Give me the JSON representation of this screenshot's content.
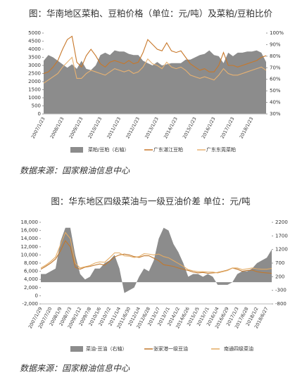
{
  "chart_data": [
    {
      "type": "line",
      "title": "图：华南地区菜粕、豆粕价格（单位：元/吨）及菜粕/豆粕比价",
      "source": "数据来源：国家粮油信息中心",
      "categories": [
        "2007/1/23",
        null,
        null,
        null,
        "2008/1/23",
        null,
        null,
        null,
        "2009/1/23",
        null,
        null,
        null,
        "2010/1/23",
        null,
        null,
        null,
        "2011/1/23",
        null,
        null,
        null,
        "2012/1/23",
        null,
        null,
        null,
        "2013/1/23",
        null,
        null,
        null,
        "2014/1/23",
        null,
        null,
        null,
        "2015/1/23",
        null,
        null,
        null,
        "2016/1/23",
        null,
        null,
        null,
        "2017/1/23",
        null,
        null,
        null,
        "2018/1/23",
        null,
        null,
        null
      ],
      "ylim": [
        0,
        5000
      ],
      "yticks": [
        0,
        500,
        1000,
        1500,
        2000,
        2500,
        3000,
        3500,
        4000,
        4500,
        5000
      ],
      "y2lim": [
        30,
        100
      ],
      "y2ticks": [
        {
          "value": 30,
          "label": "30%"
        },
        {
          "value": 40,
          "label": "40%"
        },
        {
          "value": 50,
          "label": "50%"
        },
        {
          "value": 60,
          "label": "60%"
        },
        {
          "value": 70,
          "label": "70%"
        },
        {
          "value": 80,
          "label": "80%"
        },
        {
          "value": 90,
          "label": "90%"
        },
        {
          "value": 100,
          "label": "100%"
        }
      ],
      "series": [
        {
          "name": "菜粕/豆粕（右轴）",
          "type": "area",
          "axis": "y2",
          "color": "#8c8c8c",
          "values": [
            76,
            81,
            79,
            76,
            73,
            70,
            73,
            69,
            76,
            69,
            68,
            72,
            81,
            83,
            81,
            85,
            84,
            84,
            82,
            81,
            81,
            76,
            74,
            72,
            75,
            72,
            73,
            74,
            74,
            74,
            77,
            77,
            79,
            81,
            82,
            85,
            81,
            80,
            74,
            83,
            80,
            83,
            83,
            84,
            84,
            85,
            83,
            75
          ]
        },
        {
          "name": "广东湛江豆粕",
          "color": "#c8782a",
          "values": [
            2500,
            2600,
            2900,
            3300,
            4000,
            4600,
            4800,
            3200,
            2900,
            3600,
            4000,
            3600,
            3100,
            2900,
            3200,
            3300,
            3200,
            3100,
            3300,
            3100,
            3200,
            3800,
            4600,
            4300,
            4000,
            3900,
            4400,
            3900,
            3800,
            3900,
            3500,
            3100,
            2900,
            2700,
            2800,
            2600,
            2600,
            3000,
            3800,
            3000,
            3000,
            2900,
            3000,
            3100,
            3200,
            3300,
            3500,
            3600
          ]
        },
        {
          "name": "广东东莞菜粕",
          "color": "#e8b272",
          "values": [
            1900,
            2100,
            2300,
            2500,
            2900,
            3200,
            3500,
            2200,
            2200,
            2500,
            2700,
            2600,
            2500,
            2400,
            2600,
            2800,
            2700,
            2600,
            2700,
            2500,
            2600,
            2900,
            3400,
            3100,
            3000,
            2800,
            3200,
            2900,
            2800,
            2900,
            2700,
            2400,
            2300,
            2200,
            2300,
            2200,
            2100,
            2400,
            2800,
            2500,
            2400,
            2400,
            2500,
            2600,
            2700,
            2800,
            2900,
            2700
          ]
        }
      ]
    },
    {
      "type": "line",
      "title": "图：华东地区四级菜油与一级豆油价差 单位：元/吨",
      "source": "数据来源：国家粮油信息中心",
      "categories": [
        "2007/1/29",
        null,
        "2007/7/20",
        null,
        "2008/1/9",
        null,
        "2008/7/3",
        null,
        "2009/1/12",
        null,
        "2009/7/8",
        null,
        "2010/1/6",
        null,
        "2010/7/2",
        null,
        "2011/1/4",
        null,
        "2011/6/30",
        null,
        "2012/1/4",
        null,
        "2012/6/28",
        null,
        "2013/1/7",
        null,
        "2013/7/1",
        null,
        "2014/1/2",
        null,
        "2014/6/26",
        null,
        "2015/1/5",
        null,
        "2015/7/1",
        null,
        "2016/1/4",
        null,
        "2016/6/29",
        null,
        "2017/1/3",
        null,
        "2017/6/28",
        null,
        "2018/1/2",
        null,
        "2018/6/27",
        null
      ],
      "ylim": [
        -2000,
        18000
      ],
      "yticks": [
        {
          "value": -2000,
          "label": "-2,000"
        },
        0,
        {
          "value": 2000,
          "label": "2,000"
        },
        {
          "value": 4000,
          "label": "4,000"
        },
        {
          "value": 6000,
          "label": "6,000"
        },
        {
          "value": 8000,
          "label": "8,000"
        },
        {
          "value": 10000,
          "label": "10,000"
        },
        {
          "value": 12000,
          "label": "12,000"
        },
        {
          "value": 14000,
          "label": "14,000"
        },
        {
          "value": 16000,
          "label": "16,000"
        },
        {
          "value": 18000,
          "label": "18,000"
        }
      ],
      "y2lim": [
        -800,
        2200
      ],
      "y2ticks": [
        -800,
        -300,
        200,
        700,
        1200,
        1700,
        2200
      ],
      "series": [
        {
          "name": "菜油-豆油（右轴）",
          "type": "area",
          "axis": "y2",
          "color": "#8c8c8c",
          "values": [
            300,
            300,
            400,
            500,
            1500,
            2000,
            2000,
            1000,
            300,
            100,
            200,
            500,
            500,
            700,
            800,
            1000,
            500,
            -400,
            -300,
            -200,
            200,
            500,
            400,
            800,
            1600,
            2000,
            1900,
            1400,
            1100,
            700,
            200,
            300,
            300,
            200,
            300,
            200,
            -100,
            -100,
            -100,
            0,
            300,
            400,
            400,
            500,
            700,
            800,
            900,
            1200
          ]
        },
        {
          "name": "张家港一级豆油",
          "color": "#c0782e",
          "values": [
            6500,
            7200,
            8000,
            9000,
            11000,
            13500,
            12000,
            7000,
            6500,
            7000,
            7200,
            7500,
            7800,
            7500,
            8500,
            9500,
            10000,
            10200,
            10000,
            9600,
            9400,
            9800,
            9800,
            9200,
            8600,
            7600,
            7400,
            7200,
            6800,
            6500,
            6200,
            5800,
            5600,
            5700,
            5500,
            5600,
            5700,
            6000,
            6300,
            6800,
            6500,
            6000,
            6200,
            6300,
            5900,
            5700,
            5600,
            5500
          ]
        },
        {
          "name": "南通四级菜油",
          "color": "#e3aa62",
          "values": [
            6800,
            7500,
            8400,
            9500,
            12500,
            15500,
            14000,
            8000,
            6800,
            7100,
            7400,
            8000,
            8300,
            8200,
            9300,
            10500,
            10500,
            9800,
            9700,
            9400,
            9600,
            10300,
            10200,
            10000,
            10200,
            9600,
            9300,
            8600,
            7900,
            7200,
            6400,
            6100,
            5900,
            5900,
            5800,
            5800,
            5600,
            5900,
            6200,
            6800,
            6800,
            6400,
            6600,
            6800,
            6600,
            6500,
            6500,
            6700
          ]
        }
      ]
    }
  ]
}
